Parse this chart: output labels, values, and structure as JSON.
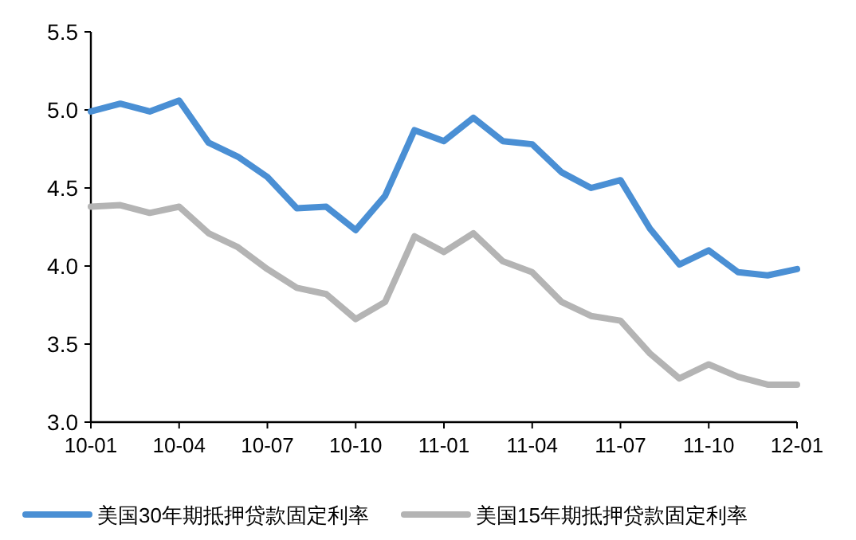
{
  "chart_data": {
    "type": "line",
    "categories": [
      "10-01",
      null,
      null,
      "10-04",
      null,
      null,
      "10-07",
      null,
      null,
      "10-10",
      null,
      null,
      "11-01",
      null,
      null,
      "11-04",
      null,
      null,
      "11-07",
      null,
      null,
      "11-10",
      null,
      null,
      "12-01"
    ],
    "series": [
      {
        "name": "美国30年期抵押贷款固定利率",
        "color": "#4a8fd4",
        "values": [
          4.99,
          5.04,
          4.99,
          5.06,
          4.79,
          4.7,
          4.57,
          4.37,
          4.38,
          4.23,
          4.45,
          4.87,
          4.8,
          4.95,
          4.8,
          4.78,
          4.6,
          4.5,
          4.55,
          4.24,
          4.01,
          4.1,
          3.96,
          3.94,
          3.98
        ]
      },
      {
        "name": "美国15年期抵押贷款固定利率",
        "color": "#b4b4b4",
        "values": [
          4.38,
          4.39,
          4.34,
          4.38,
          4.21,
          4.12,
          3.98,
          3.86,
          3.82,
          3.66,
          3.77,
          4.19,
          4.09,
          4.21,
          4.03,
          3.96,
          3.77,
          3.68,
          3.65,
          3.44,
          3.28,
          3.37,
          3.29,
          3.24,
          3.24
        ]
      }
    ],
    "ylim": [
      3.0,
      5.5
    ],
    "yticks": [
      {
        "value": 3.0,
        "label": "3.0"
      },
      {
        "value": 3.5,
        "label": "3.5"
      },
      {
        "value": 4.0,
        "label": "4.0"
      },
      {
        "value": 4.5,
        "label": "4.5"
      },
      {
        "value": 5.0,
        "label": "5.0"
      },
      {
        "value": 5.5,
        "label": "5.5"
      }
    ],
    "grid": false,
    "legend": "bottom",
    "marker": "none",
    "line_style": "solid"
  }
}
